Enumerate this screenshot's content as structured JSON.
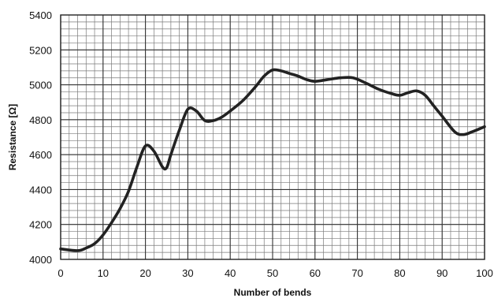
{
  "chart_data": {
    "type": "line",
    "title": "",
    "xlabel": "Number of bends",
    "ylabel": "Resistance [Ω]",
    "xlim": [
      0,
      100
    ],
    "ylim": [
      4000,
      5400
    ],
    "x_major_ticks": [
      0,
      10,
      20,
      30,
      40,
      50,
      60,
      70,
      80,
      90,
      100
    ],
    "y_major_ticks": [
      4000,
      4200,
      4400,
      4600,
      4800,
      5000,
      5200,
      5400
    ],
    "x_tick_labels": [
      "0",
      "10",
      "20",
      "30",
      "40",
      "50",
      "60",
      "70",
      "80",
      "90",
      "100"
    ],
    "y_tick_labels": [
      "4000",
      "4200",
      "4400",
      "4600",
      "4800",
      "5000",
      "5200",
      "5400"
    ],
    "x_minor_step": 2,
    "y_minor_step": 40,
    "grid": true,
    "legend": "none",
    "series": [
      {
        "color": "#222222",
        "x": [
          0,
          4,
          6,
          8,
          10,
          12,
          14,
          16,
          18,
          20,
          22,
          24,
          25,
          26,
          28,
          30,
          32,
          34,
          36,
          38,
          40,
          43,
          46,
          48,
          50,
          52,
          54,
          56,
          58,
          60,
          63,
          66,
          69,
          72,
          75,
          78,
          80,
          82,
          84,
          86,
          88,
          90,
          93,
          95,
          97,
          100
        ],
        "y": [
          4060,
          4050,
          4065,
          4090,
          4140,
          4210,
          4290,
          4390,
          4530,
          4650,
          4620,
          4530,
          4525,
          4600,
          4740,
          4860,
          4850,
          4795,
          4795,
          4815,
          4850,
          4910,
          4990,
          5050,
          5085,
          5080,
          5065,
          5050,
          5030,
          5020,
          5030,
          5040,
          5040,
          5010,
          4975,
          4950,
          4940,
          4955,
          4965,
          4940,
          4880,
          4820,
          4730,
          4715,
          4730,
          4760
        ]
      }
    ]
  }
}
